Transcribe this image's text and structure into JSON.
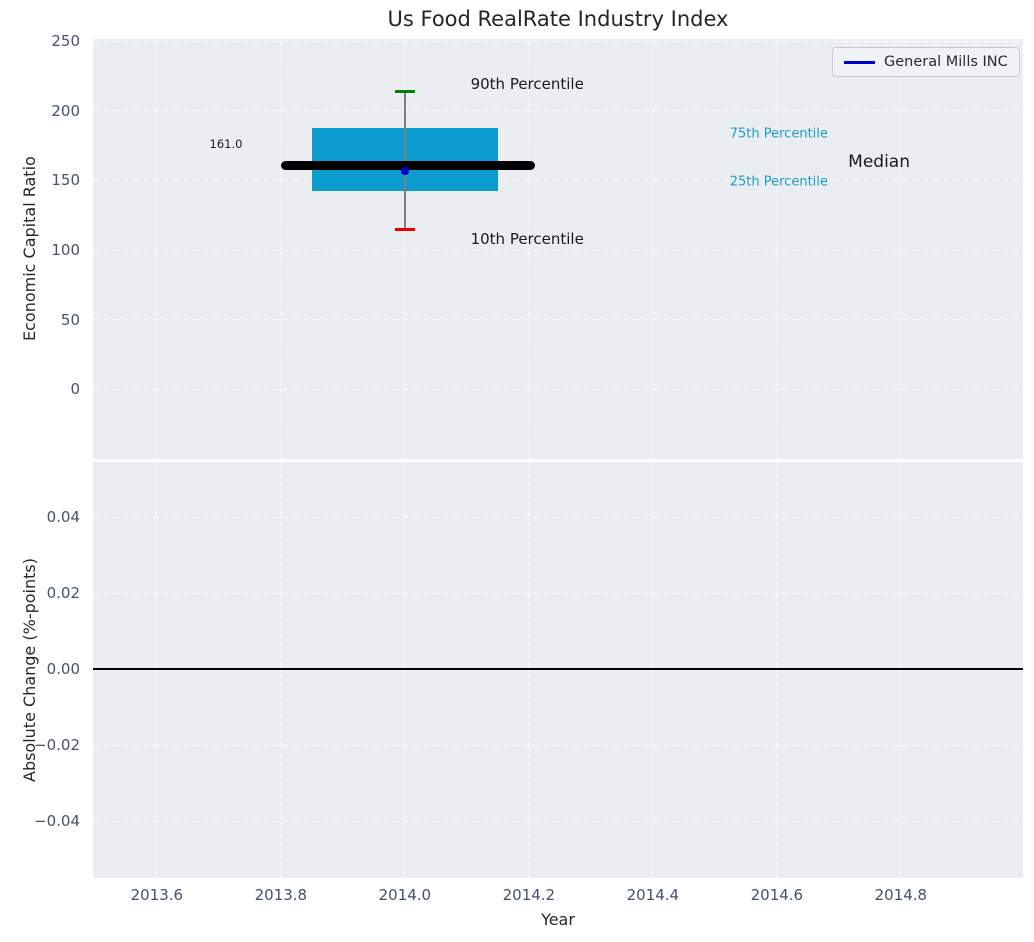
{
  "title": "Us Food RealRate Industry Index",
  "legend": {
    "label": "General Mills INC",
    "line_color": "#0000cd"
  },
  "colors": {
    "figure_bg": "#ffffff",
    "axes_bg": "#eaeef0",
    "grid": "#ffffff",
    "box_fill": "#0a9ccd",
    "median_line": "#000000",
    "whisker": "#7f7f7f",
    "cap_90th": "#008000",
    "cap_10th": "#e60000",
    "company_point": "#0000cd",
    "tick_label": "#44536b",
    "text": "#262626",
    "percentile_label_blue": "#1e9bcd",
    "zero_line": "#000000"
  },
  "chart_data": [
    {
      "type": "box",
      "title": "Us Food RealRate Industry Index",
      "xlabel": "Year",
      "ylabel": "Economic Capital Ratio",
      "xlim": [
        2013.497,
        2014.997
      ],
      "ylim": [
        -50,
        251.5
      ],
      "xtick_values": [
        2013.6,
        2013.8,
        2014.0,
        2014.2,
        2014.4,
        2014.6,
        2014.8
      ],
      "xtick_labels": [
        "2013.6",
        "2013.8",
        "2014.0",
        "2014.2",
        "2014.4",
        "2014.6",
        "2014.8"
      ],
      "ytick_values": [
        0,
        50,
        100,
        150,
        200,
        250
      ],
      "ytick_labels": [
        "0",
        "50",
        "100",
        "150",
        "200",
        "250"
      ],
      "grid": "white-dashed",
      "legend_position": "upper-right",
      "x": 2014.0,
      "percentiles": {
        "p10": 114.5,
        "p25": 142.5,
        "median": 161.0,
        "p75": 187.5,
        "p90": 214.0
      },
      "median_value_label": "161.0",
      "box_x_span": [
        2013.85,
        2014.15
      ],
      "median_x_span": [
        2013.8,
        2014.21
      ],
      "cap_half_width": 0.016,
      "company_point": {
        "name": "General Mills INC",
        "x": 2014.0,
        "y": 157.0
      },
      "annotations": [
        {
          "text": "90th Percentile",
          "x": 2014.106,
          "y": 219.0,
          "size": 15,
          "color": "#1a1a1a"
        },
        {
          "text": "10th Percentile",
          "x": 2014.106,
          "y": 108.0,
          "size": 15,
          "color": "#1a1a1a"
        },
        {
          "text": "161.0",
          "x": 2013.685,
          "y": 176.0,
          "size": 11.5,
          "color": "#1a1a1a"
        },
        {
          "text": "75th Percentile",
          "x": 2014.524,
          "y": 183.0,
          "size": 13,
          "color": "#1e9bcd"
        },
        {
          "text": "Median",
          "x": 2014.715,
          "y": 163.0,
          "size": 17,
          "color": "#1a1a1a"
        },
        {
          "text": "25th Percentile",
          "x": 2014.524,
          "y": 149.0,
          "size": 13,
          "color": "#1e9bcd"
        }
      ]
    },
    {
      "type": "line",
      "ylabel": "Absolute Change (%-points)",
      "ylim": [
        -0.055,
        0.0545
      ],
      "ytick_values": [
        0.04,
        0.02,
        0.0,
        -0.02,
        -0.04
      ],
      "ytick_labels": [
        "0.04",
        "0.02",
        "0.00",
        "−0.02",
        "−0.04"
      ],
      "grid": "white-dashed",
      "zero_line": 0.0,
      "series": []
    }
  ]
}
